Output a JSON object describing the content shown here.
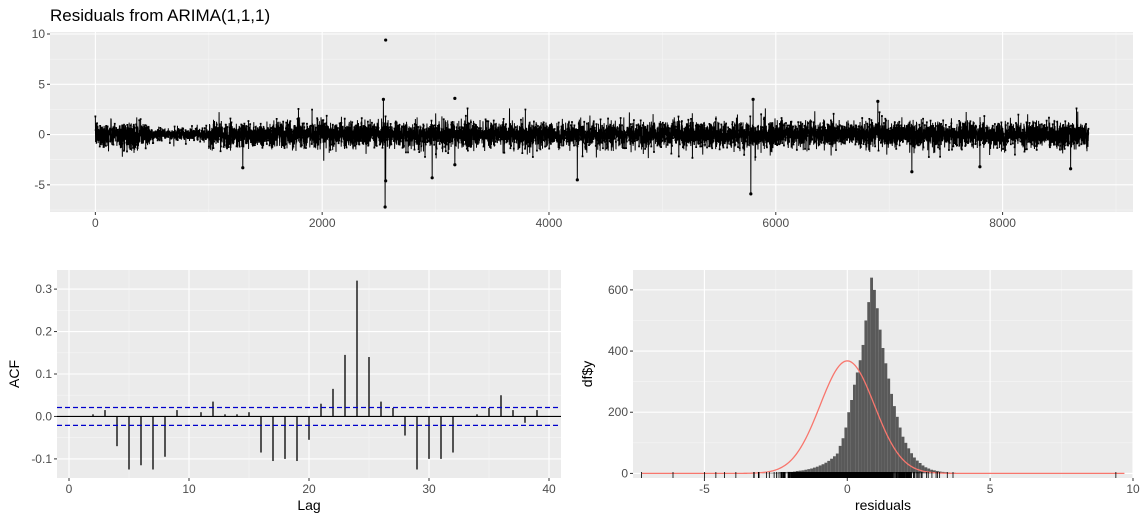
{
  "title": "Residuals from ARIMA(1,1,1)",
  "chart_data": [
    {
      "type": "line",
      "title": "Residuals from ARIMA(1,1,1)",
      "xlabel": "",
      "ylabel": "",
      "xlim": [
        -400,
        9150
      ],
      "ylim": [
        -7.7,
        10.2
      ],
      "x_ticks": [
        0,
        2000,
        4000,
        6000,
        8000
      ],
      "x_tick_labels": [
        "0",
        "2000",
        "4000",
        "6000",
        "8000"
      ],
      "y_ticks": [
        -5,
        0,
        5,
        10
      ],
      "y_tick_labels": [
        "-5",
        "0",
        "5",
        "10"
      ],
      "n_points": 8760,
      "typical_amplitude": 1.0,
      "notable_points": [
        {
          "x": 2560,
          "y": 9.4
        },
        {
          "x": 2555,
          "y": -7.2
        },
        {
          "x": 2560,
          "y": -4.6
        },
        {
          "x": 2540,
          "y": 3.5
        },
        {
          "x": 3170,
          "y": 3.6
        },
        {
          "x": 2970,
          "y": -4.3
        },
        {
          "x": 3170,
          "y": -3.0
        },
        {
          "x": 1300,
          "y": -3.3
        },
        {
          "x": 4250,
          "y": -4.5
        },
        {
          "x": 5780,
          "y": -5.9
        },
        {
          "x": 5800,
          "y": 3.5
        },
        {
          "x": 7200,
          "y": -3.7
        },
        {
          "x": 7800,
          "y": -3.2
        },
        {
          "x": 8600,
          "y": -3.4
        },
        {
          "x": 6900,
          "y": 3.3
        }
      ],
      "grid": true,
      "panel_background": "#ebebeb",
      "line_color": "#000000"
    },
    {
      "type": "bar",
      "title": "",
      "xlabel": "Lag",
      "ylabel": "ACF",
      "xlim": [
        -1,
        41
      ],
      "ylim": [
        -0.145,
        0.345
      ],
      "x_ticks": [
        0,
        10,
        20,
        30,
        40
      ],
      "x_tick_labels": [
        "0",
        "10",
        "20",
        "30",
        "40"
      ],
      "y_ticks": [
        -0.1,
        0.0,
        0.1,
        0.2,
        0.3
      ],
      "y_tick_labels": [
        "-0.1",
        "0.0",
        "0.1",
        "0.2",
        "0.3"
      ],
      "lags": [
        1,
        2,
        3,
        4,
        5,
        6,
        7,
        8,
        9,
        10,
        11,
        12,
        13,
        14,
        15,
        16,
        17,
        18,
        19,
        20,
        21,
        22,
        23,
        24,
        25,
        26,
        27,
        28,
        29,
        30,
        31,
        32,
        33,
        34,
        35,
        36,
        37,
        38,
        39,
        40
      ],
      "values": [
        0.0,
        0.005,
        0.015,
        -0.07,
        -0.125,
        -0.115,
        -0.125,
        -0.095,
        0.015,
        0.0,
        0.01,
        0.035,
        0.005,
        0.005,
        0.01,
        -0.085,
        -0.105,
        -0.1,
        -0.105,
        -0.055,
        0.03,
        0.065,
        0.145,
        0.32,
        0.14,
        0.035,
        0.02,
        -0.045,
        -0.125,
        -0.1,
        -0.1,
        -0.085,
        0.0,
        0.005,
        0.02,
        0.05,
        0.015,
        -0.015,
        0.015,
        0.0
      ],
      "confidence_bound": 0.021,
      "confidence_color": "#0000cc",
      "grid": true
    },
    {
      "type": "bar",
      "subtype": "histogram",
      "title": "",
      "xlabel": "residuals",
      "ylabel": "df$y",
      "xlim": [
        -7.5,
        10.0
      ],
      "ylim": [
        -15,
        665
      ],
      "x_ticks": [
        -5,
        0,
        5,
        10
      ],
      "x_tick_labels": [
        "-5",
        "0",
        "5",
        "10"
      ],
      "y_ticks": [
        0,
        200,
        400,
        600
      ],
      "y_tick_labels": [
        "0",
        "200",
        "400",
        "600"
      ],
      "bin_width": 0.1,
      "bin_start": -3.5,
      "counts": [
        1,
        0,
        1,
        1,
        0,
        1,
        1,
        1,
        2,
        2,
        2,
        3,
        3,
        4,
        5,
        5,
        6,
        8,
        9,
        10,
        12,
        14,
        16,
        19,
        22,
        26,
        30,
        35,
        41,
        48,
        56,
        65,
        90,
        115,
        150,
        200,
        240,
        290,
        330,
        370,
        420,
        500,
        560,
        640,
        600,
        540,
        470,
        410,
        360,
        310,
        260,
        220,
        185,
        150,
        120,
        100,
        82,
        66,
        52,
        42,
        34,
        26,
        20,
        16,
        12,
        10,
        8,
        6,
        5,
        4,
        3,
        2,
        2,
        1,
        1,
        1
      ],
      "density_curve": {
        "mean": 0.0,
        "sd": 0.95,
        "n": 8760,
        "bin_width": 0.1,
        "color": "#f8766d"
      },
      "rug": true,
      "grid": true,
      "bar_color": "#595959"
    }
  ]
}
